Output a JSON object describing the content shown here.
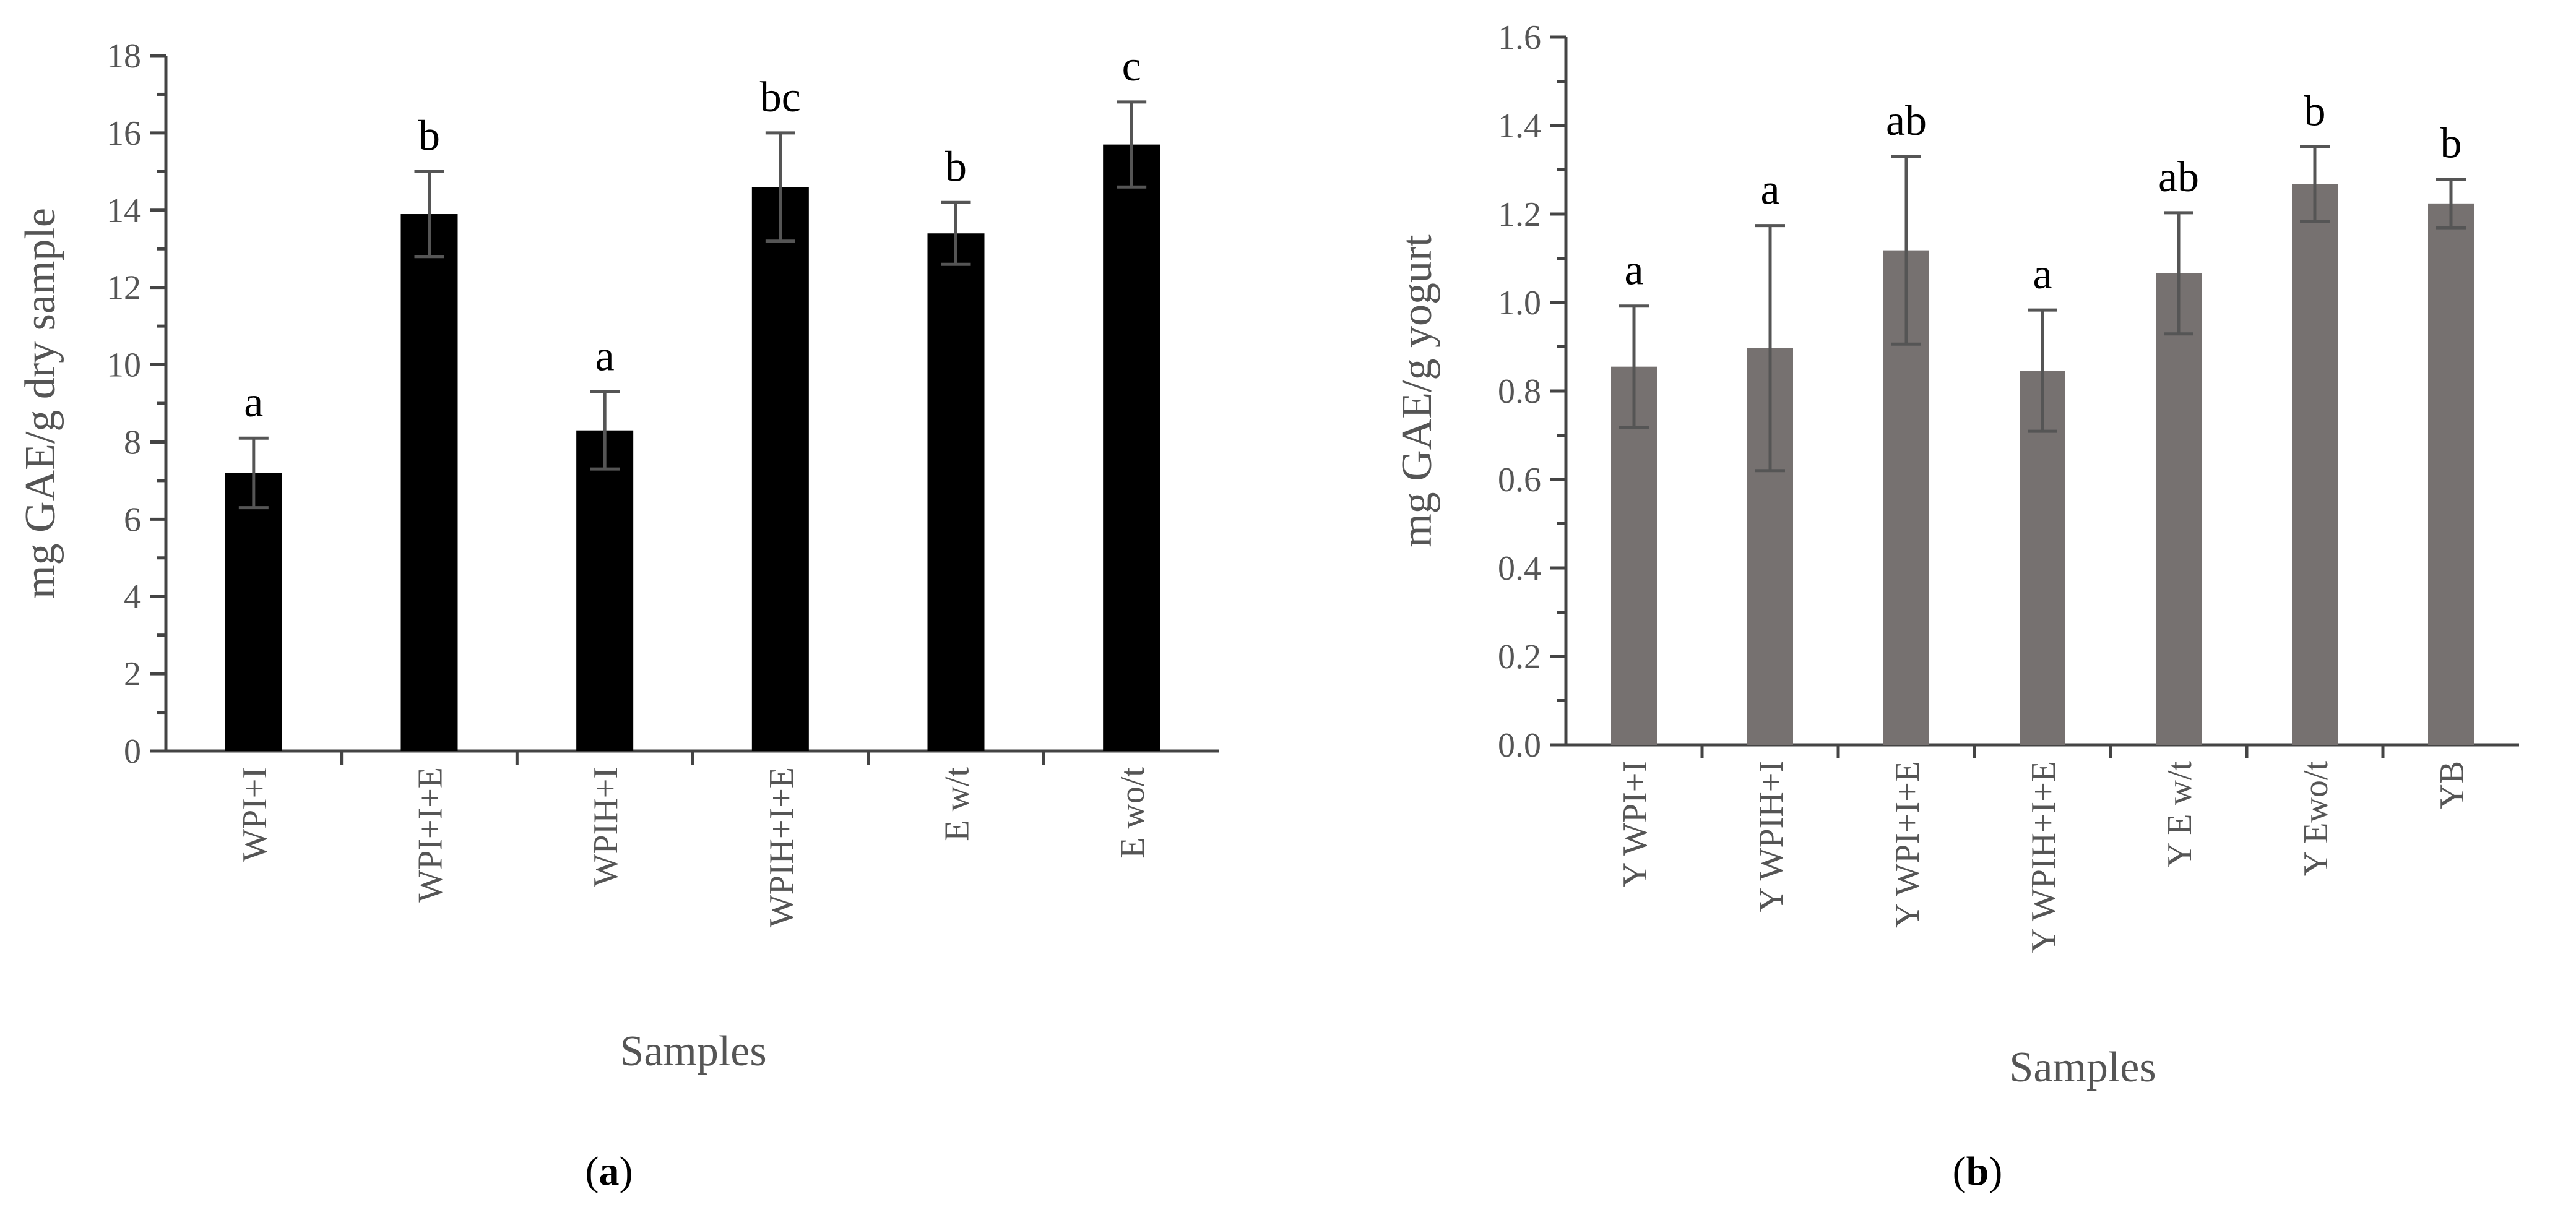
{
  "chart_data": [
    {
      "type": "bar",
      "panel_label": "a",
      "xlabel": "Samples",
      "ylabel": "mg GAE/g dry sample",
      "ylim": [
        0,
        18
      ],
      "ytick_step": 2,
      "ytick_decimals": 0,
      "categories": [
        "WPI+I",
        "WPI+I+E",
        "WPIH+I",
        "WPIH+I+E",
        "E w/t",
        "E wo/t"
      ],
      "values": [
        7.2,
        13.9,
        8.3,
        14.6,
        13.4,
        15.7
      ],
      "errors": [
        0.9,
        1.1,
        1.0,
        1.4,
        0.8,
        1.1
      ],
      "significance": [
        "a",
        "b",
        "a",
        "bc",
        "b",
        "c"
      ],
      "bar_color": "#000000",
      "grid": false
    },
    {
      "type": "bar",
      "panel_label": "b",
      "xlabel": "Samples",
      "ylabel": "mg GAE/g yogurt",
      "ylim": [
        0,
        1.6
      ],
      "ytick_step": 0.2,
      "ytick_decimals": 1,
      "categories": [
        "Y WPI+I",
        "Y WPIH+I",
        "Y WPI+I+E",
        "Y WPIH+I+E",
        "Y E w/t",
        "Y Ewo/t",
        "YB"
      ],
      "values": [
        0.855,
        0.897,
        1.118,
        0.846,
        1.066,
        1.268,
        1.224
      ],
      "errors": [
        0.137,
        0.277,
        0.212,
        0.137,
        0.137,
        0.084,
        0.055
      ],
      "significance": [
        "a",
        "a",
        "ab",
        "a",
        "ab",
        "b",
        "b"
      ],
      "bar_color": "#767170",
      "grid": false
    }
  ]
}
